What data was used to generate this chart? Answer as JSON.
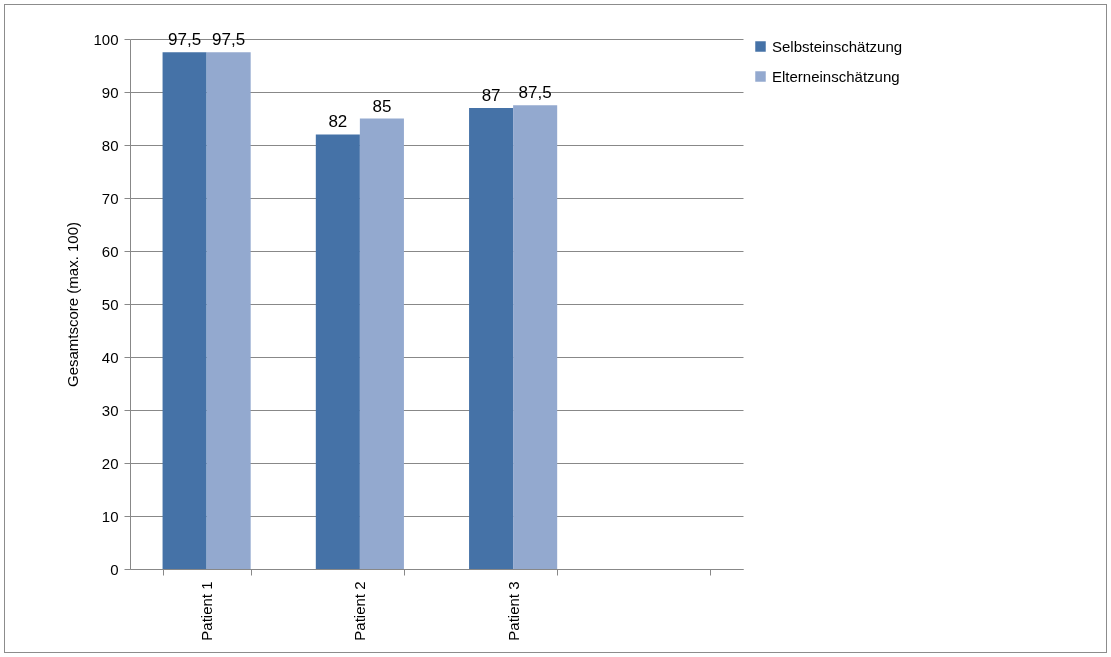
{
  "chart_data": {
    "type": "bar",
    "ylabel": "Gesamtscore (max. 100)",
    "categories": [
      "Patient 1",
      "Patient 2",
      "Patient 3",
      null
    ],
    "series": [
      {
        "name": "Selbsteinschätzung",
        "color": "#4572a7",
        "values": [
          97.5,
          82,
          87,
          null
        ],
        "value_labels": [
          "97,5",
          "82",
          "87",
          null
        ]
      },
      {
        "name": "Elterneinschätzung",
        "color": "#93a9cf",
        "values": [
          97.5,
          85,
          87.5,
          null
        ],
        "value_labels": [
          "97,5",
          "85",
          "87,5",
          null
        ]
      }
    ],
    "ylim": [
      0,
      100
    ],
    "yticks": [
      0,
      10,
      20,
      30,
      40,
      50,
      60,
      70,
      80,
      90,
      100
    ],
    "grid": "y",
    "legend": "right"
  }
}
